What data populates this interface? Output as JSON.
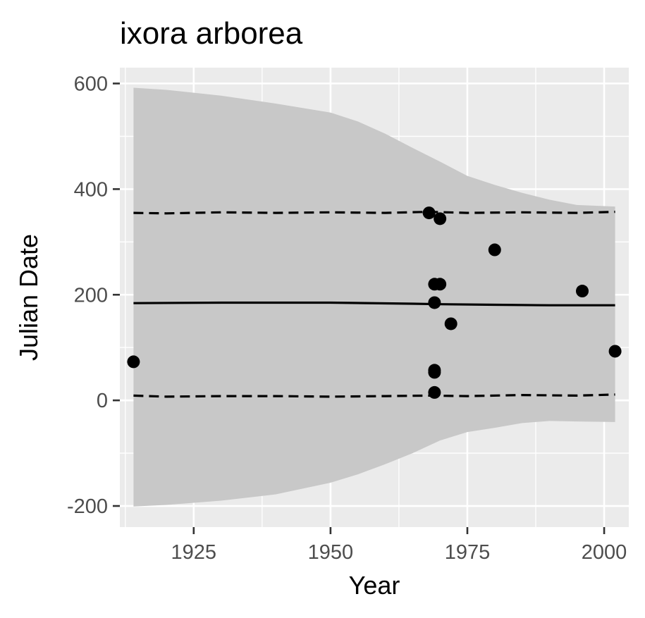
{
  "chart_data": {
    "type": "scatter",
    "title": "ixora arborea",
    "xlabel": "Year",
    "ylabel": "Julian Date",
    "xlim": [
      1911.5,
      2004.5
    ],
    "ylim": [
      -240,
      630
    ],
    "x_ticks": [
      1925,
      1950,
      1975,
      2000
    ],
    "x_tick_labels": [
      "1925",
      "1950",
      "1975",
      "2000"
    ],
    "y_ticks": [
      -200,
      0,
      200,
      400,
      600
    ],
    "y_tick_labels": [
      "-200",
      "0",
      "200",
      "400",
      "600"
    ],
    "grid": true,
    "legend": "none",
    "colors": {
      "panel": "#ebebeb",
      "grid": "#ffffff",
      "ribbon": "#c8c8c8",
      "points": "#000000",
      "lines": "#000000"
    },
    "points": [
      {
        "x": 1914,
        "y": 73
      },
      {
        "x": 1968,
        "y": 355
      },
      {
        "x": 1969,
        "y": 220
      },
      {
        "x": 1969,
        "y": 185
      },
      {
        "x": 1969,
        "y": 57
      },
      {
        "x": 1969,
        "y": 53
      },
      {
        "x": 1969,
        "y": 15
      },
      {
        "x": 1970,
        "y": 344
      },
      {
        "x": 1970,
        "y": 220
      },
      {
        "x": 1972,
        "y": 145
      },
      {
        "x": 1980,
        "y": 285
      },
      {
        "x": 1996,
        "y": 207
      },
      {
        "x": 2002,
        "y": 93
      }
    ],
    "fit_line": {
      "x": [
        1914,
        1930,
        1950,
        1965,
        1970,
        1980,
        1990,
        2002
      ],
      "y": [
        184,
        185,
        185,
        183,
        182,
        181,
        180,
        180
      ]
    },
    "upper_dashed": {
      "x": [
        1914,
        1920,
        1930,
        1940,
        1950,
        1960,
        1968,
        1975,
        1985,
        1995,
        2002
      ],
      "y": [
        355,
        354,
        356,
        355,
        356,
        355,
        357,
        355,
        356,
        355,
        357
      ]
    },
    "lower_dashed": {
      "x": [
        1914,
        1920,
        1930,
        1940,
        1950,
        1960,
        1968,
        1975,
        1985,
        1995,
        2002
      ],
      "y": [
        9,
        7,
        8,
        8,
        7,
        8,
        9,
        8,
        10,
        9,
        11
      ]
    },
    "ribbon": {
      "x": [
        1914,
        1920,
        1930,
        1940,
        1950,
        1955,
        1960,
        1965,
        1970,
        1975,
        1980,
        1985,
        1990,
        1995,
        2002
      ],
      "upper": [
        592,
        588,
        577,
        562,
        545,
        528,
        505,
        478,
        452,
        425,
        408,
        393,
        380,
        370,
        367
      ],
      "lower": [
        -201,
        -198,
        -190,
        -178,
        -156,
        -140,
        -121,
        -100,
        -76,
        -60,
        -52,
        -43,
        -39,
        -40,
        -41
      ]
    }
  }
}
